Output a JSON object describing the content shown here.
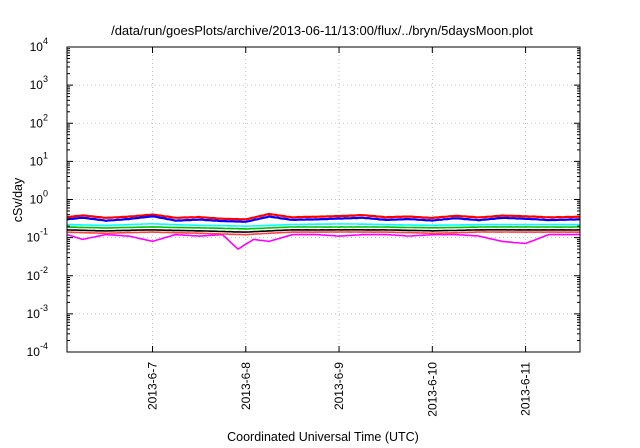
{
  "chart_data": {
    "type": "line",
    "title": "/data/run/goesPlots/archive/2013-06-11/13:00/flux/../bryn/5daysMoon.plot",
    "xlabel": "Coordinated Universal Time (UTC)",
    "ylabel": "cSv/day",
    "y_scale": "log",
    "ylim": [
      0.0001,
      10000
    ],
    "xlim": [
      "2013-06-06 02:00",
      "2013-06-11 14:00"
    ],
    "grid": true,
    "y_ticks": [
      {
        "base": "10",
        "exp": "-4",
        "value": 0.0001
      },
      {
        "base": "10",
        "exp": "-3",
        "value": 0.001
      },
      {
        "base": "10",
        "exp": "-2",
        "value": 0.01
      },
      {
        "base": "10",
        "exp": "-1",
        "value": 0.1
      },
      {
        "base": "10",
        "exp": "0",
        "value": 1
      },
      {
        "base": "10",
        "exp": "1",
        "value": 10
      },
      {
        "base": "10",
        "exp": "2",
        "value": 100
      },
      {
        "base": "10",
        "exp": "3",
        "value": 1000
      },
      {
        "base": "10",
        "exp": "4",
        "value": 10000
      }
    ],
    "x_ticks": [
      {
        "label": "2013-6-7",
        "date": "2013-06-07"
      },
      {
        "label": "2013-6-8",
        "date": "2013-06-08"
      },
      {
        "label": "2013-6-9",
        "date": "2013-06-09"
      },
      {
        "label": "2013-6-10",
        "date": "2013-06-10"
      },
      {
        "label": "2013-6-11",
        "date": "2013-06-11"
      }
    ],
    "series": [
      {
        "color": "#ff00ff",
        "base_value": 0.12,
        "points": [
          [
            "2013-06-06 02:00",
            0.12
          ],
          [
            "2013-06-06 06:00",
            0.09
          ],
          [
            "2013-06-06 12:00",
            0.12
          ],
          [
            "2013-06-06 18:00",
            0.11
          ],
          [
            "2013-06-07 00:00",
            0.08
          ],
          [
            "2013-06-07 06:00",
            0.12
          ],
          [
            "2013-06-07 12:00",
            0.11
          ],
          [
            "2013-06-07 18:00",
            0.12
          ],
          [
            "2013-06-07 22:00",
            0.05
          ],
          [
            "2013-06-08 02:00",
            0.09
          ],
          [
            "2013-06-08 06:00",
            0.08
          ],
          [
            "2013-06-08 12:00",
            0.12
          ],
          [
            "2013-06-08 18:00",
            0.12
          ],
          [
            "2013-06-09 00:00",
            0.11
          ],
          [
            "2013-06-09 06:00",
            0.12
          ],
          [
            "2013-06-09 12:00",
            0.12
          ],
          [
            "2013-06-09 18:00",
            0.11
          ],
          [
            "2013-06-10 00:00",
            0.12
          ],
          [
            "2013-06-10 06:00",
            0.12
          ],
          [
            "2013-06-10 12:00",
            0.11
          ],
          [
            "2013-06-10 18:00",
            0.08
          ],
          [
            "2013-06-11 00:00",
            0.07
          ],
          [
            "2013-06-11 06:00",
            0.12
          ],
          [
            "2013-06-11 14:00",
            0.12
          ]
        ]
      },
      {
        "color": "#ff0000",
        "base_value": 0.35,
        "points": [
          [
            "2013-06-06 02:00",
            0.34
          ],
          [
            "2013-06-06 06:00",
            0.38
          ],
          [
            "2013-06-06 12:00",
            0.33
          ],
          [
            "2013-06-06 18:00",
            0.36
          ],
          [
            "2013-06-07 00:00",
            0.4
          ],
          [
            "2013-06-07 06:00",
            0.33
          ],
          [
            "2013-06-07 12:00",
            0.35
          ],
          [
            "2013-06-07 18:00",
            0.31
          ],
          [
            "2013-06-08 00:00",
            0.3
          ],
          [
            "2013-06-08 06:00",
            0.42
          ],
          [
            "2013-06-08 12:00",
            0.34
          ],
          [
            "2013-06-08 18:00",
            0.35
          ],
          [
            "2013-06-09 00:00",
            0.37
          ],
          [
            "2013-06-09 06:00",
            0.39
          ],
          [
            "2013-06-09 12:00",
            0.34
          ],
          [
            "2013-06-09 18:00",
            0.36
          ],
          [
            "2013-06-10 00:00",
            0.33
          ],
          [
            "2013-06-10 06:00",
            0.37
          ],
          [
            "2013-06-10 12:00",
            0.34
          ],
          [
            "2013-06-10 18:00",
            0.38
          ],
          [
            "2013-06-11 00:00",
            0.36
          ],
          [
            "2013-06-11 06:00",
            0.34
          ],
          [
            "2013-06-11 14:00",
            0.35
          ]
        ]
      },
      {
        "color": "#0000ff",
        "base_value": 0.3,
        "points": [
          [
            "2013-06-06 02:00",
            0.3
          ],
          [
            "2013-06-06 06:00",
            0.33
          ],
          [
            "2013-06-06 12:00",
            0.28
          ],
          [
            "2013-06-06 18:00",
            0.31
          ],
          [
            "2013-06-07 00:00",
            0.36
          ],
          [
            "2013-06-07 06:00",
            0.28
          ],
          [
            "2013-06-07 12:00",
            0.3
          ],
          [
            "2013-06-07 18:00",
            0.27
          ],
          [
            "2013-06-08 00:00",
            0.26
          ],
          [
            "2013-06-08 06:00",
            0.36
          ],
          [
            "2013-06-08 12:00",
            0.29
          ],
          [
            "2013-06-08 18:00",
            0.3
          ],
          [
            "2013-06-09 00:00",
            0.32
          ],
          [
            "2013-06-09 06:00",
            0.33
          ],
          [
            "2013-06-09 12:00",
            0.29
          ],
          [
            "2013-06-09 18:00",
            0.31
          ],
          [
            "2013-06-10 00:00",
            0.28
          ],
          [
            "2013-06-10 06:00",
            0.32
          ],
          [
            "2013-06-10 12:00",
            0.29
          ],
          [
            "2013-06-10 18:00",
            0.33
          ],
          [
            "2013-06-11 00:00",
            0.31
          ],
          [
            "2013-06-11 06:00",
            0.29
          ],
          [
            "2013-06-11 14:00",
            0.3
          ]
        ]
      },
      {
        "color": "#00ffff",
        "base_value": 0.22,
        "points": [
          [
            "2013-06-06 02:00",
            0.22
          ],
          [
            "2013-06-06 12:00",
            0.21
          ],
          [
            "2013-06-07 00:00",
            0.23
          ],
          [
            "2013-06-07 12:00",
            0.21
          ],
          [
            "2013-06-08 00:00",
            0.2
          ],
          [
            "2013-06-08 12:00",
            0.22
          ],
          [
            "2013-06-09 00:00",
            0.23
          ],
          [
            "2013-06-09 12:00",
            0.22
          ],
          [
            "2013-06-10 00:00",
            0.21
          ],
          [
            "2013-06-10 12:00",
            0.22
          ],
          [
            "2013-06-11 00:00",
            0.22
          ],
          [
            "2013-06-11 14:00",
            0.22
          ]
        ]
      },
      {
        "color": "#00c000",
        "base_value": 0.19,
        "points": [
          [
            "2013-06-06 02:00",
            0.19
          ],
          [
            "2013-06-06 12:00",
            0.18
          ],
          [
            "2013-06-07 00:00",
            0.19
          ],
          [
            "2013-06-07 12:00",
            0.18
          ],
          [
            "2013-06-08 00:00",
            0.17
          ],
          [
            "2013-06-08 12:00",
            0.19
          ],
          [
            "2013-06-09 00:00",
            0.19
          ],
          [
            "2013-06-09 12:00",
            0.19
          ],
          [
            "2013-06-10 00:00",
            0.18
          ],
          [
            "2013-06-10 12:00",
            0.19
          ],
          [
            "2013-06-11 00:00",
            0.19
          ],
          [
            "2013-06-11 14:00",
            0.19
          ]
        ]
      },
      {
        "color": "#000000",
        "base_value": 0.16,
        "points": [
          [
            "2013-06-06 02:00",
            0.16
          ],
          [
            "2013-06-06 12:00",
            0.15
          ],
          [
            "2013-06-07 00:00",
            0.16
          ],
          [
            "2013-06-07 12:00",
            0.15
          ],
          [
            "2013-06-08 00:00",
            0.14
          ],
          [
            "2013-06-08 12:00",
            0.16
          ],
          [
            "2013-06-09 00:00",
            0.16
          ],
          [
            "2013-06-09 12:00",
            0.16
          ],
          [
            "2013-06-10 00:00",
            0.15
          ],
          [
            "2013-06-10 12:00",
            0.16
          ],
          [
            "2013-06-11 00:00",
            0.16
          ],
          [
            "2013-06-11 14:00",
            0.16
          ]
        ]
      },
      {
        "color": "#ff4040",
        "base_value": 0.14,
        "points": [
          [
            "2013-06-06 02:00",
            0.14
          ],
          [
            "2013-06-06 12:00",
            0.13
          ],
          [
            "2013-06-07 00:00",
            0.14
          ],
          [
            "2013-06-07 12:00",
            0.13
          ],
          [
            "2013-06-08 00:00",
            0.12
          ],
          [
            "2013-06-08 12:00",
            0.14
          ],
          [
            "2013-06-09 00:00",
            0.14
          ],
          [
            "2013-06-09 12:00",
            0.14
          ],
          [
            "2013-06-10 00:00",
            0.13
          ],
          [
            "2013-06-10 12:00",
            0.14
          ],
          [
            "2013-06-11 00:00",
            0.14
          ],
          [
            "2013-06-11 14:00",
            0.14
          ]
        ]
      }
    ]
  }
}
